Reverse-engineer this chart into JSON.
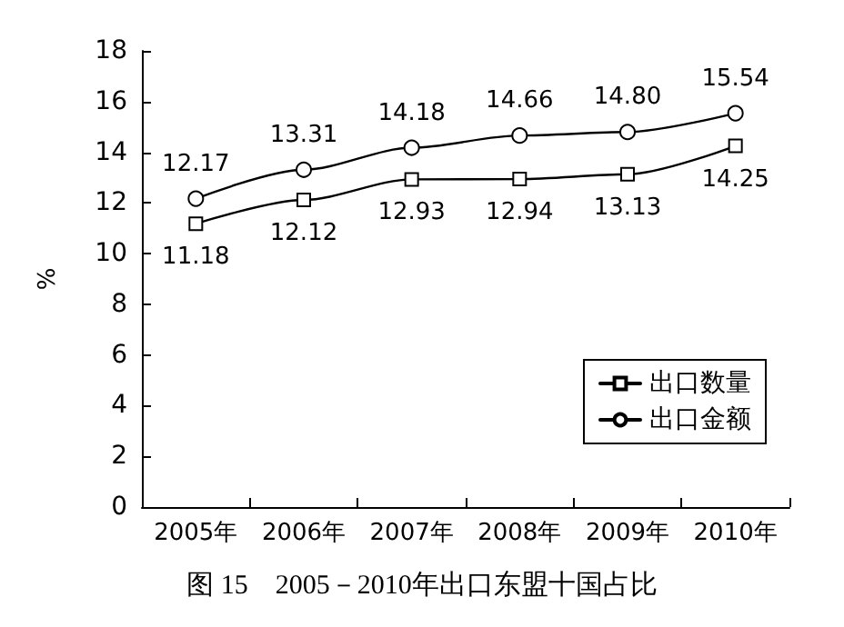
{
  "chart_data": {
    "type": "line",
    "title": "图 15　2005－2010年出口东盟十国占比",
    "ylabel": "%",
    "categories": [
      "2005年",
      "2006年",
      "2007年",
      "2008年",
      "2009年",
      "2010年"
    ],
    "series": [
      {
        "name": "出口数量",
        "color": "#000000",
        "marker": "square",
        "values": [
          11.18,
          12.12,
          12.93,
          12.94,
          13.13,
          14.25
        ],
        "value_labels": [
          "11.18",
          "12.12",
          "12.93",
          "12.94",
          "13.13",
          "14.25"
        ]
      },
      {
        "name": "出口金额",
        "color": "#000000",
        "marker": "circle",
        "values": [
          12.17,
          13.31,
          14.18,
          14.66,
          14.8,
          15.54
        ],
        "value_labels": [
          "12.17",
          "13.31",
          "14.18",
          "14.66",
          "14.80",
          "15.54"
        ]
      }
    ],
    "ylim": [
      0,
      18
    ],
    "yticks": [
      0,
      2,
      4,
      6,
      8,
      10,
      12,
      14,
      16,
      18
    ],
    "grid": false,
    "legend": "bottom right",
    "line_style": "solid"
  }
}
